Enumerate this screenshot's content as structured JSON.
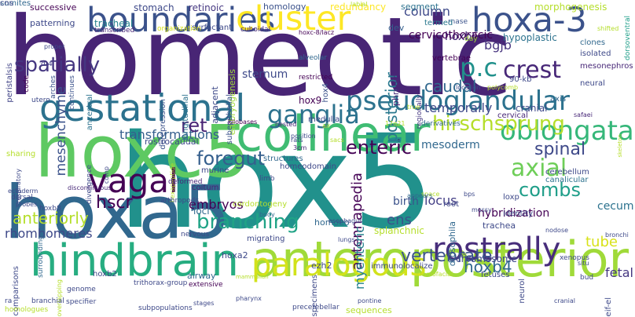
{
  "words": [
    {
      "text": "homeotic",
      "color": "#482575",
      "rot": false
    },
    {
      "text": "hox5",
      "color": "#21918c",
      "rot": false
    },
    {
      "text": "hoxc5",
      "color": "#5ec962",
      "rot": false
    },
    {
      "text": "hoxa5",
      "color": "#31688e",
      "rot": false
    },
    {
      "text": "anteroposterior",
      "color": "#a0da39",
      "rot": false
    },
    {
      "text": "colinear",
      "color": "#3fbc73",
      "rot": false
    },
    {
      "text": "hindbrain",
      "color": "#27ad81",
      "rot": false
    },
    {
      "text": "gestational",
      "color": "#2c728e",
      "rot": false
    },
    {
      "text": "boundaries",
      "color": "#3b528b",
      "rot": false
    },
    {
      "text": "cluster",
      "color": "#fde725",
      "rot": false
    },
    {
      "text": "hoxa-3",
      "color": "#3b528b",
      "rot": false
    },
    {
      "text": "paralogous",
      "color": "#d2e21b",
      "rot": false
    },
    {
      "text": "rostrally",
      "color": "#472d7b",
      "rot": false
    },
    {
      "text": "pseudoglandular",
      "color": "#2c728e",
      "rot": false
    },
    {
      "text": "vagal",
      "color": "#440154",
      "rot": false
    },
    {
      "text": "oblongata",
      "color": "#35b779",
      "rot": false
    },
    {
      "text": "ganglia",
      "color": "#2c728e",
      "rot": false
    },
    {
      "text": "axial",
      "color": "#6ece58",
      "rot": false
    },
    {
      "text": "branching",
      "color": "#20a386",
      "rot": false
    },
    {
      "text": "p.c",
      "color": "#21918c",
      "rot": false
    },
    {
      "text": "enteric",
      "color": "#440154",
      "rot": false
    },
    {
      "text": "vertebrate",
      "color": "#3b528b",
      "rot": false
    },
    {
      "text": "hirschsprung",
      "color": "#b5de2b",
      "rot": false
    },
    {
      "text": "crest",
      "color": "#482878",
      "rot": false
    },
    {
      "text": "foregut",
      "color": "#355f8d",
      "rot": false
    },
    {
      "text": "hoxb4",
      "color": "#31688e",
      "rot": false
    },
    {
      "text": "combs",
      "color": "#1f9e89",
      "rot": false
    },
    {
      "text": "spinal",
      "color": "#3e4989",
      "rot": false
    },
    {
      "text": "ret",
      "color": "#482475",
      "rot": false
    },
    {
      "text": "anteriorly",
      "color": "#b5de2b",
      "rot": false
    },
    {
      "text": "caudal",
      "color": "#31688e",
      "rot": false
    },
    {
      "text": "spatially",
      "color": "#453781",
      "rot": false
    },
    {
      "text": "mesenchyme",
      "color": "#3b528b",
      "rot": true
    },
    {
      "text": "hscr",
      "color": "#440154",
      "rot": false
    },
    {
      "text": "antennapedia",
      "color": "#440154",
      "rot": true
    },
    {
      "text": "column",
      "color": "#3e4989",
      "rot": false
    },
    {
      "text": "posterior",
      "color": "#2a788e",
      "rot": true
    },
    {
      "text": "ens",
      "color": "#3b528b",
      "rot": false
    },
    {
      "text": "myenteric",
      "color": "#26828e",
      "rot": true
    },
    {
      "text": "hoxb6",
      "color": "#482878",
      "rot": false
    },
    {
      "text": "bgjb",
      "color": "#46337e",
      "rot": false
    },
    {
      "text": "transformations",
      "color": "#355f8d",
      "rot": false
    },
    {
      "text": "tube",
      "color": "#d8e219",
      "rot": false
    },
    {
      "text": "fetal",
      "color": "#453781",
      "rot": false
    },
    {
      "text": "rhombomeres",
      "color": "#3e4989",
      "rot": false
    },
    {
      "text": "temporally",
      "color": "#3e4989",
      "rot": false
    },
    {
      "text": "hybridization",
      "color": "#440154",
      "rot": false
    },
    {
      "text": "locus",
      "color": "#433e85",
      "rot": false
    },
    {
      "text": "birth",
      "color": "#3b528b",
      "rot": false
    },
    {
      "text": "cecum",
      "color": "#2c728e",
      "rot": false
    },
    {
      "text": "embryos",
      "color": "#440154",
      "rot": false
    },
    {
      "text": "hoxb6 ",
      "color": "#482878",
      "rot": false
    },
    {
      "text": "sternum",
      "color": "#3e4989",
      "rot": false
    },
    {
      "text": "mesoderm",
      "color": "#31688e",
      "rot": false
    },
    {
      "text": "cervicothoracic",
      "color": "#440154",
      "rot": false
    },
    {
      "text": "successive",
      "color": "#440154",
      "rot": false
    },
    {
      "text": "stomach",
      "color": "#3e4989",
      "rot": false
    },
    {
      "text": "retinoic",
      "color": "#453781",
      "rot": false
    },
    {
      "text": "homology",
      "color": "#3b528b",
      "rot": false
    },
    {
      "text": "redundancy",
      "color": "#fde725",
      "rot": false
    },
    {
      "text": "segment",
      "color": "#2c728e",
      "rot": false
    },
    {
      "text": "morphogenesis",
      "color": "#b5de2b",
      "rot": false
    },
    {
      "text": "patterning",
      "color": "#3e4989",
      "rot": false
    },
    {
      "text": "tracheal",
      "color": "#26828e",
      "rot": false
    },
    {
      "text": "dorsoventral",
      "color": "#1f9e89",
      "rot": true
    },
    {
      "text": "hypoplastic",
      "color": "#2c728e",
      "rot": false
    },
    {
      "text": "rnase",
      "color": "#3b528b",
      "rot": false
    },
    {
      "text": "termed",
      "color": "#2a788e",
      "rot": false
    },
    {
      "text": "dev",
      "color": "#355f8d",
      "rot": false
    },
    {
      "text": "hoxc-8/lacz",
      "color": "#440154",
      "rot": false
    },
    {
      "text": "peristalsis",
      "color": "#414487",
      "rot": true
    },
    {
      "text": "cuboidal",
      "color": "#482878",
      "rot": false
    },
    {
      "text": "surfactant",
      "color": "#3e4989",
      "rot": false
    },
    {
      "text": "organization",
      "color": "#d8e219",
      "rot": false
    },
    {
      "text": "transcribed",
      "color": "#482878",
      "rot": false
    },
    {
      "text": "labial",
      "color": "#b5de2b",
      "rot": false
    },
    {
      "text": "shifted",
      "color": "#b5de2b",
      "rot": false
    },
    {
      "text": "isolated",
      "color": "#3e4989",
      "rot": false
    },
    {
      "text": "mesonephros",
      "color": "#482878",
      "rot": false
    },
    {
      "text": "clones",
      "color": "#31688e",
      "rot": false
    },
    {
      "text": "day",
      "color": "#a0da39",
      "rot": false
    },
    {
      "text": "vertebrae",
      "color": "#440154",
      "rot": false
    },
    {
      "text": "90-kb",
      "color": "#3e4989",
      "rot": false
    },
    {
      "text": "neural",
      "color": "#3e4989",
      "rot": false
    },
    {
      "text": "axis",
      "color": "#31688e",
      "rot": false
    },
    {
      "text": "phrenic",
      "color": "#482878",
      "rot": true
    },
    {
      "text": "regionally",
      "color": "#453781",
      "rot": true
    },
    {
      "text": "hox4",
      "color": "#3b528b",
      "rot": true
    },
    {
      "text": "embryogenesis",
      "color": "#a0da39",
      "rot": true
    },
    {
      "text": "subepithelial",
      "color": "#3b528b",
      "rot": true
    },
    {
      "text": "adjacent",
      "color": "#3e4989",
      "rot": true
    },
    {
      "text": "longitudinal",
      "color": "#2c728e",
      "rot": true
    },
    {
      "text": "derepression",
      "color": "#3b528b",
      "rot": true
    },
    {
      "text": "ancestral",
      "color": "#2c728e",
      "rot": true
    },
    {
      "text": "continues",
      "color": "#3b528b",
      "rot": true
    },
    {
      "text": "arches",
      "color": "#3b528b",
      "rot": true
    },
    {
      "text": "code",
      "color": "#440154",
      "rot": true
    },
    {
      "text": "d-4",
      "color": "#433e85",
      "rot": false
    },
    {
      "text": "utero",
      "color": "#3e4989",
      "rot": false
    },
    {
      "text": "proper",
      "color": "#3e4989",
      "rot": false
    },
    {
      "text": "alveolar",
      "color": "#31688e",
      "rot": false
    },
    {
      "text": "restricted",
      "color": "#440154",
      "rot": false
    },
    {
      "text": "location",
      "color": "#3e4989",
      "rot": false
    },
    {
      "text": "polycomb",
      "color": "#b5de2b",
      "rot": false
    },
    {
      "text": "true",
      "color": "#b5de2b",
      "rot": false
    },
    {
      "text": "cranial",
      "color": "#3e4989",
      "rot": false
    },
    {
      "text": "medulla",
      "color": "#3e4989",
      "rot": false
    },
    {
      "text": "nested",
      "color": "#482878",
      "rot": false
    },
    {
      "text": "air",
      "color": "#b5de2b",
      "rot": false
    },
    {
      "text": "kilobases",
      "color": "#440154",
      "rot": false
    },
    {
      "text": "hox9",
      "color": "#440154",
      "rot": false
    },
    {
      "text": "17q21",
      "color": "#b5de2b",
      "rot": false
    },
    {
      "text": "derivatives",
      "color": "#31688e",
      "rot": false
    },
    {
      "text": "cervical",
      "color": "#482878",
      "rot": false
    },
    {
      "text": "safaei",
      "color": "#482878",
      "rot": false
    },
    {
      "text": "rostrocaudal",
      "color": "#3e4989",
      "rot": false
    },
    {
      "text": "sharing",
      "color": "#b5de2b",
      "rot": false
    },
    {
      "text": "position",
      "color": "#3e4989",
      "rot": false
    },
    {
      "text": "rats",
      "color": "#3e4989",
      "rot": false
    },
    {
      "text": "3cm",
      "color": "#482878",
      "rot": false
    },
    {
      "text": "sacs",
      "color": "#b5de2b",
      "rot": false
    },
    {
      "text": "structures",
      "color": "#31688e",
      "rot": false
    },
    {
      "text": "homeodomain",
      "color": "#3e4989",
      "rot": false
    },
    {
      "text": "canalicular",
      "color": "#2c728e",
      "rot": false
    },
    {
      "text": "cerebellum",
      "color": "#3e4989",
      "rot": false
    },
    {
      "text": "skeleton",
      "color": "#b5de2b",
      "rot": true
    },
    {
      "text": "murine",
      "color": "#3e4989",
      "rot": false
    },
    {
      "text": "coitum",
      "color": "#482878",
      "rot": false
    },
    {
      "text": "limb",
      "color": "#3e4989",
      "rot": false
    },
    {
      "text": "divergence",
      "color": "#3e4989",
      "rot": true
    },
    {
      "text": "comp",
      "color": "#3e4989",
      "rot": true
    },
    {
      "text": "hexapeptide",
      "color": "#b5de2b",
      "rot": true
    },
    {
      "text": "respiratory",
      "color": "#3e4989",
      "rot": true
    },
    {
      "text": "hoxb8",
      "color": "#3e4989",
      "rot": false
    },
    {
      "text": "discontinuous",
      "color": "#482878",
      "rot": false
    },
    {
      "text": "ectoderm",
      "color": "#3e4989",
      "rot": false
    },
    {
      "text": "dorsal",
      "color": "#3e4989",
      "rot": false
    },
    {
      "text": "cordontogeny",
      "color": "#b5de2b",
      "rot": false
    },
    {
      "text": "loxp",
      "color": "#3e4989",
      "rot": false
    },
    {
      "text": "identity",
      "color": "#3e4989",
      "rot": false
    },
    {
      "text": "bps",
      "color": "#3e4989",
      "rot": false
    },
    {
      "text": "space",
      "color": "#b5de2b",
      "rot": false
    },
    {
      "text": "mossy",
      "color": "#3e4989",
      "rot": false
    },
    {
      "text": "root",
      "color": "#3e4989",
      "rot": false
    },
    {
      "text": "appears",
      "color": "#31688e",
      "rot": false
    },
    {
      "text": "drosophila",
      "color": "#31688e",
      "rot": true
    },
    {
      "text": "homoeo",
      "color": "#31688e",
      "rot": false
    },
    {
      "text": "loci",
      "color": "#31688e",
      "rot": false
    },
    {
      "text": "deformed",
      "color": "#482878",
      "rot": false
    },
    {
      "text": "arthropods",
      "color": "#3e4989",
      "rot": false
    },
    {
      "text": "nervous",
      "color": "#3e4989",
      "rot": false
    },
    {
      "text": "body",
      "color": "#31688e",
      "rot": false
    },
    {
      "text": "splanchnic",
      "color": "#b5de2b",
      "rot": false
    },
    {
      "text": "esophagus",
      "color": "#3e4989",
      "rot": false
    },
    {
      "text": "lungs",
      "color": "#3e4989",
      "rot": false
    },
    {
      "text": "trachea",
      "color": "#3e4989",
      "rot": false
    },
    {
      "text": "immunolocalize",
      "color": "#3e4989",
      "rot": false
    },
    {
      "text": "chromosome",
      "color": "#3e4989",
      "rot": false
    },
    {
      "text": "fetuses",
      "color": "#3e4989",
      "rot": false
    },
    {
      "text": "a5",
      "color": "#3e4989",
      "rot": false
    },
    {
      "text": "xenopus",
      "color": "#3e4989",
      "rot": false
    },
    {
      "text": "bronchi",
      "color": "#3e4989",
      "rot": false
    },
    {
      "text": "nodose",
      "color": "#3e4989",
      "rot": false
    },
    {
      "text": "neurol",
      "color": "#3e4989",
      "rot": true
    },
    {
      "text": "airway",
      "color": "#31688e",
      "rot": false
    },
    {
      "text": "migrating",
      "color": "#3e4989",
      "rot": false
    },
    {
      "text": "hoxa2",
      "color": "#3e4989",
      "rot": false
    },
    {
      "text": "surrounding",
      "color": "#31688e",
      "rot": true
    },
    {
      "text": "ra",
      "color": "#3e4989",
      "rot": false
    },
    {
      "text": "hoxb2",
      "color": "#3e4989",
      "rot": false
    },
    {
      "text": "comparisons",
      "color": "#3e4989",
      "rot": true
    },
    {
      "text": "overlapping",
      "color": "#b5de2b",
      "rot": true
    },
    {
      "text": "genome",
      "color": "#3e4989",
      "rot": false
    },
    {
      "text": "trithorax-group",
      "color": "#3e4989",
      "rot": false
    },
    {
      "text": "extensive",
      "color": "#440154",
      "rot": false
    },
    {
      "text": "specimens",
      "color": "#3e4989",
      "rot": true
    },
    {
      "text": "mammalian",
      "color": "#b5de2b",
      "rot": false
    },
    {
      "text": "ezh2",
      "color": "#3e4989",
      "rot": false
    },
    {
      "text": "craniofacial",
      "color": "#b5de2b",
      "rot": false
    },
    {
      "text": "bud",
      "color": "#3e4989",
      "rot": false
    },
    {
      "text": "eif-el",
      "color": "#3e4989",
      "rot": true
    },
    {
      "text": "situ",
      "color": "#3e4989",
      "rot": false
    },
    {
      "text": "cranial ",
      "color": "#3e4989",
      "rot": false
    },
    {
      "text": "sequences",
      "color": "#b5de2b",
      "rot": false
    },
    {
      "text": "pontine",
      "color": "#3e4989",
      "rot": false
    },
    {
      "text": "precerebellar",
      "color": "#3e4989",
      "rot": false
    },
    {
      "text": "pharynx",
      "color": "#3e4989",
      "rot": false
    },
    {
      "text": "stages",
      "color": "#3e4989",
      "rot": false
    },
    {
      "text": "subpopulations",
      "color": "#3e4989",
      "rot": false
    },
    {
      "text": "specifier",
      "color": "#3e4989",
      "rot": false
    },
    {
      "text": "branchial",
      "color": "#3e4989",
      "rot": false
    },
    {
      "text": "homologues",
      "color": "#b5de2b",
      "rot": false
    },
    {
      "text": "probes",
      "color": "#3e4989",
      "rot": false
    },
    {
      "text": "somites",
      "color": "#31688e",
      "rot": false
    },
    {
      "text": "cns",
      "color": "#3e4989",
      "rot": false
    }
  ]
}
